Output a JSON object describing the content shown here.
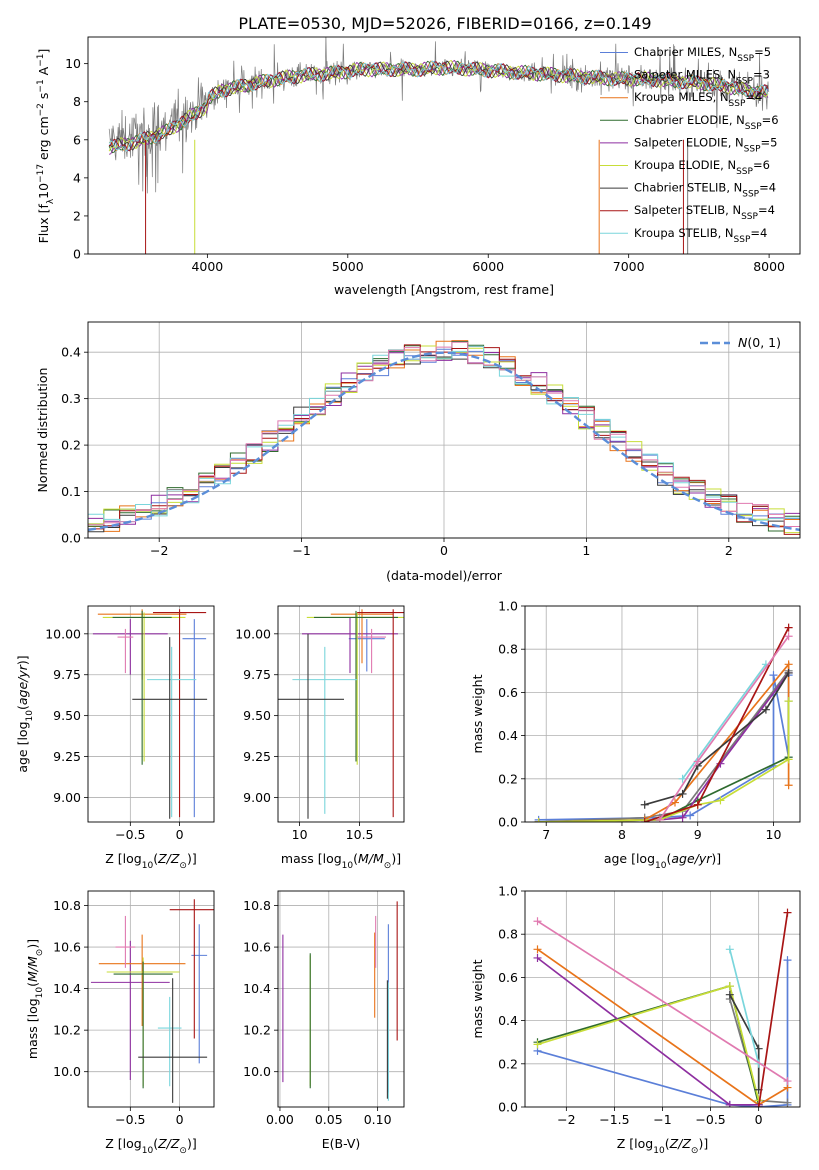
{
  "figure": {
    "title": "PLATE=0530, MJD=52026, FIBERID=0166, z=0.149"
  },
  "colors": {
    "Chabrier MILES": "#5b7fd8",
    "Salpeter MILES": "#7a7a7a",
    "Kroupa MILES": "#e8741a",
    "Chabrier ELODIE": "#2f6b2f",
    "Salpeter ELODIE": "#8e2fa0",
    "Kroupa ELODIE": "#c7dd38",
    "Chabrier STELIB": "#3a3a3a",
    "Salpeter STELIB": "#a81515",
    "Kroupa STELIB": "#7ad6dc",
    "pink": "#e07ab0",
    "gaussian": "#5b8ed8"
  },
  "chart_data": [
    {
      "id": "spectrum",
      "type": "line",
      "xlabel": "wavelength [Angstrom, rest frame]",
      "ylabel": "Flux [f_λ 10^-17 erg cm^-2 s^-1 A^-1]",
      "xlim": [
        3150,
        8220
      ],
      "ylim": [
        0,
        11.4
      ],
      "xticks": [
        4000,
        5000,
        6000,
        7000,
        8000
      ],
      "yticks": [
        0,
        2,
        4,
        6,
        8,
        10
      ],
      "grid": false,
      "legend_position": "top-right",
      "legend": [
        {
          "label": "Chabrier MILES, N_SSP=5",
          "color": "#5b7fd8"
        },
        {
          "label": "Salpeter MILES, N_SSP=3",
          "color": "#7a7a7a"
        },
        {
          "label": "Kroupa MILES, N_SSP=4",
          "color": "#e8741a"
        },
        {
          "label": "Chabrier ELODIE, N_SSP=6",
          "color": "#2f6b2f"
        },
        {
          "label": "Salpeter ELODIE, N_SSP=5",
          "color": "#8e2fa0"
        },
        {
          "label": "Kroupa ELODIE, N_SSP=6",
          "color": "#c7dd38"
        },
        {
          "label": "Chabrier STELIB, N_SSP=4",
          "color": "#3a3a3a"
        },
        {
          "label": "Salpeter STELIB, N_SSP=4",
          "color": "#a81515"
        },
        {
          "label": "Kroupa STELIB, N_SSP=4",
          "color": "#7ad6dc"
        }
      ],
      "continuum": {
        "x": [
          3300,
          3500,
          3700,
          3900,
          4100,
          4300,
          4500,
          4700,
          4900,
          5100,
          5300,
          5500,
          5700,
          5900,
          6100,
          6300,
          6500,
          6700,
          6900,
          7100,
          7300,
          7500,
          7700,
          7900
        ],
        "y": [
          5.9,
          6.2,
          6.7,
          7.6,
          8.6,
          8.9,
          9.2,
          9.4,
          9.5,
          9.7,
          9.7,
          9.7,
          9.8,
          9.7,
          9.6,
          9.5,
          9.4,
          9.3,
          9.2,
          9.2,
          9.1,
          9.0,
          8.8,
          8.5
        ]
      }
    },
    {
      "id": "residuals",
      "type": "histogram",
      "xlabel": "(data-model)/error",
      "ylabel": "Normed distribution",
      "xlim": [
        -2.5,
        2.5
      ],
      "ylim": [
        0,
        0.465
      ],
      "xticks": [
        -2,
        -1,
        0,
        1,
        2
      ],
      "yticks": [
        0.0,
        0.1,
        0.2,
        0.3,
        0.4
      ],
      "grid": true,
      "legend_position": "top-right",
      "legend": [
        {
          "label": "N(0,1)",
          "color": "#5b8ed8"
        }
      ],
      "bins": 45
    },
    {
      "id": "age-vs-Z",
      "type": "errorbar",
      "xlabel": "Z [log10(Z/Z_sun)]",
      "ylabel": "age  [log10(age/yr)]",
      "xlim": [
        -0.93,
        0.35
      ],
      "ylim": [
        8.85,
        10.17
      ],
      "xticks": [
        -0.5,
        0.0
      ],
      "yticks": [
        9.0,
        9.25,
        9.5,
        9.75,
        10.0
      ],
      "grid": true,
      "points": [
        {
          "series": "Chabrier MILES",
          "x": 0.15,
          "xerr": 0.12,
          "y": 9.97,
          "yerr_lo": 1.09,
          "yerr_hi": 0.12
        },
        {
          "series": "Salpeter ELODIE",
          "x": -0.5,
          "xerr": 0.38,
          "y": 10.0,
          "yerr_lo": 0.25,
          "yerr_hi": 0.09
        },
        {
          "series": "Kroupa MILES",
          "x": -0.38,
          "xerr": 0.45,
          "y": 10.12,
          "yerr_lo": 0.4,
          "yerr_hi": 0.03
        },
        {
          "series": "Kroupa ELODIE",
          "x": -0.36,
          "xerr": 0.42,
          "y": 10.1,
          "yerr_lo": 0.88,
          "yerr_hi": 0.03
        },
        {
          "series": "Chabrier ELODIE",
          "x": -0.38,
          "xerr": 0.3,
          "y": 10.1,
          "yerr_lo": 0.9,
          "yerr_hi": 0.04
        },
        {
          "series": "Salpeter STELIB",
          "x": 0.0,
          "xerr": 0.27,
          "y": 10.13,
          "yerr_lo": 1.25,
          "yerr_hi": 0.02
        },
        {
          "series": "Kroupa STELIB",
          "x": -0.08,
          "xerr": 0.25,
          "y": 9.72,
          "yerr_lo": 0.84,
          "yerr_hi": 0.2
        },
        {
          "series": "Chabrier STELIB",
          "x": -0.1,
          "xerr": 0.38,
          "y": 9.6,
          "yerr_lo": 0.73,
          "yerr_hi": 0.38
        },
        {
          "series": "pink",
          "x": -0.55,
          "xerr": 0.08,
          "y": 9.98,
          "yerr_lo": 0.22,
          "yerr_hi": 0.05
        }
      ]
    },
    {
      "id": "age-vs-mass",
      "type": "errorbar",
      "xlabel": "mass [log10(M/M_sun)]",
      "ylabel": "",
      "xlim": [
        9.82,
        10.87
      ],
      "ylim": [
        8.85,
        10.17
      ],
      "xticks": [
        10.0,
        10.5
      ],
      "yticks": [
        9.0,
        9.25,
        9.5,
        9.75,
        10.0
      ],
      "grid": true,
      "points": [
        {
          "series": "Chabrier MILES",
          "x": 10.56,
          "xerr": 0.15,
          "y": 9.97,
          "yerr_lo": 0.2,
          "yerr_hi": 0.12
        },
        {
          "series": "Salpeter ELODIE",
          "x": 10.42,
          "xerr": 0.4,
          "y": 10.0,
          "yerr_lo": 0.24,
          "yerr_hi": 0.1
        },
        {
          "series": "Kroupa MILES",
          "x": 10.52,
          "xerr": 0.26,
          "y": 10.12,
          "yerr_lo": 0.3,
          "yerr_hi": 0.03
        },
        {
          "series": "Kroupa ELODIE",
          "x": 10.48,
          "xerr": 0.42,
          "y": 10.1,
          "yerr_lo": 0.9,
          "yerr_hi": 0.03
        },
        {
          "series": "Chabrier ELODIE",
          "x": 10.47,
          "xerr": 0.35,
          "y": 10.1,
          "yerr_lo": 0.88,
          "yerr_hi": 0.04
        },
        {
          "series": "Salpeter STELIB",
          "x": 10.78,
          "xerr": 0.3,
          "y": 10.13,
          "yerr_lo": 1.25,
          "yerr_hi": 0.02
        },
        {
          "series": "Kroupa STELIB",
          "x": 10.21,
          "xerr": 0.27,
          "y": 9.72,
          "yerr_lo": 0.82,
          "yerr_hi": 0.2
        },
        {
          "series": "Chabrier STELIB",
          "x": 10.07,
          "xerr": 0.3,
          "y": 9.6,
          "yerr_lo": 0.73,
          "yerr_hi": 0.4
        },
        {
          "series": "pink",
          "x": 10.6,
          "xerr": 0.12,
          "y": 9.98,
          "yerr_lo": 0.22,
          "yerr_hi": 0.05
        }
      ]
    },
    {
      "id": "mass-weight-vs-age",
      "type": "line",
      "xlabel": "age  [log10(age/yr)]",
      "ylabel": "mass weight",
      "xlim": [
        6.72,
        10.35
      ],
      "ylim": [
        0,
        1.0
      ],
      "xticks": [
        7,
        8,
        9,
        10
      ],
      "yticks": [
        0.0,
        0.2,
        0.4,
        0.6,
        0.8,
        1.0
      ],
      "grid": true,
      "series": [
        {
          "name": "Chabrier MILES",
          "x": [
            6.9,
            8.5,
            8.9,
            10.0,
            10.0,
            10.2,
            10.2
          ],
          "y": [
            0.01,
            0.02,
            0.03,
            0.26,
            0.68,
            0.3,
            0.68
          ]
        },
        {
          "name": "Salpeter MILES",
          "x": [
            6.9,
            8.3,
            8.8,
            10.2
          ],
          "y": [
            0.0,
            0.02,
            0.05,
            0.7
          ]
        },
        {
          "name": "Kroupa MILES",
          "x": [
            6.9,
            8.3,
            8.7,
            10.2,
            10.2
          ],
          "y": [
            0.0,
            0.01,
            0.09,
            0.73,
            0.17
          ]
        },
        {
          "name": "Chabrier ELODIE",
          "x": [
            6.9,
            8.5,
            9.0,
            10.2,
            10.2
          ],
          "y": [
            0.0,
            0.01,
            0.1,
            0.3,
            0.56
          ]
        },
        {
          "name": "Salpeter ELODIE",
          "x": [
            6.9,
            8.5,
            8.8,
            9.3,
            10.2
          ],
          "y": [
            0.0,
            0.01,
            0.02,
            0.27,
            0.69
          ]
        },
        {
          "name": "Kroupa ELODIE",
          "x": [
            6.9,
            8.5,
            9.0,
            9.3,
            10.2,
            10.2
          ],
          "y": [
            0.0,
            0.01,
            0.08,
            0.1,
            0.29,
            0.56
          ]
        },
        {
          "name": "Chabrier STELIB",
          "x": [
            8.3,
            8.8,
            9.0,
            9.9,
            10.2
          ],
          "y": [
            0.08,
            0.13,
            0.26,
            0.52,
            0.69
          ]
        },
        {
          "name": "Salpeter STELIB",
          "x": [
            8.3,
            9.0,
            10.2
          ],
          "y": [
            0.0,
            0.08,
            0.9
          ]
        },
        {
          "name": "Kroupa STELIB",
          "x": [
            8.8,
            9.9
          ],
          "y": [
            0.2,
            0.73
          ]
        },
        {
          "name": "pink",
          "x": [
            8.5,
            9.0,
            10.2
          ],
          "y": [
            0.01,
            0.28,
            0.86
          ]
        }
      ]
    },
    {
      "id": "mass-vs-Z",
      "type": "errorbar",
      "xlabel": "Z [log10(Z/Z_sun)]",
      "ylabel": "mass [log10(M/M_sun)]",
      "xlim": [
        -0.93,
        0.35
      ],
      "ylim": [
        9.83,
        10.87
      ],
      "xticks": [
        -0.5,
        0.0
      ],
      "yticks": [
        10.0,
        10.2,
        10.4,
        10.6,
        10.8
      ],
      "grid": true,
      "points": [
        {
          "series": "Chabrier MILES",
          "x": 0.2,
          "xerr": 0.08,
          "y": 10.56,
          "yerr_lo": 0.52,
          "yerr_hi": 0.15
        },
        {
          "series": "Salpeter ELODIE",
          "x": -0.5,
          "xerr": 0.4,
          "y": 10.43,
          "yerr_lo": 0.47,
          "yerr_hi": 0.2
        },
        {
          "series": "Kroupa MILES",
          "x": -0.38,
          "xerr": 0.44,
          "y": 10.52,
          "yerr_lo": 0.3,
          "yerr_hi": 0.14
        },
        {
          "series": "Kroupa ELODIE",
          "x": -0.37,
          "xerr": 0.37,
          "y": 10.48,
          "yerr_lo": 0.55,
          "yerr_hi": 0.07
        },
        {
          "series": "Chabrier ELODIE",
          "x": -0.37,
          "xerr": 0.3,
          "y": 10.47,
          "yerr_lo": 0.55,
          "yerr_hi": 0.06
        },
        {
          "series": "Salpeter STELIB",
          "x": 0.15,
          "xerr": 0.25,
          "y": 10.78,
          "yerr_lo": 0.62,
          "yerr_hi": 0.05
        },
        {
          "series": "Kroupa STELIB",
          "x": -0.1,
          "xerr": 0.12,
          "y": 10.21,
          "yerr_lo": 0.28,
          "yerr_hi": 0.15
        },
        {
          "series": "Chabrier STELIB",
          "x": -0.07,
          "xerr": 0.35,
          "y": 10.07,
          "yerr_lo": 0.22,
          "yerr_hi": 0.38
        },
        {
          "series": "pink",
          "x": -0.55,
          "xerr": 0.1,
          "y": 10.6,
          "yerr_lo": 0.1,
          "yerr_hi": 0.15
        }
      ]
    },
    {
      "id": "mass-vs-EBV",
      "type": "errorbar",
      "xlabel": "E(B-V)",
      "ylabel": "",
      "xlim": [
        -0.002,
        0.127
      ],
      "ylim": [
        9.83,
        10.87
      ],
      "xticks": [
        0.0,
        0.05,
        0.1
      ],
      "xtick_labels": [
        "0.00",
        "0.05",
        "0.10"
      ],
      "yticks": [
        10.0,
        10.2,
        10.4,
        10.6,
        10.8
      ],
      "grid": true,
      "points": [
        {
          "series": "Chabrier MILES",
          "x": 0.111,
          "y": 10.56,
          "yerr_lo": 0.66,
          "yerr_hi": 0.15
        },
        {
          "series": "Salpeter ELODIE",
          "x": 0.003,
          "y": 10.43,
          "yerr_lo": 0.48,
          "yerr_hi": 0.23
        },
        {
          "series": "Kroupa MILES",
          "x": 0.097,
          "y": 10.52,
          "yerr_lo": 0.26,
          "yerr_hi": 0.15
        },
        {
          "series": "Kroupa ELODIE",
          "x": 0.031,
          "y": 10.48,
          "yerr_lo": 0.55,
          "yerr_hi": 0.08
        },
        {
          "series": "Chabrier ELODIE",
          "x": 0.031,
          "y": 10.47,
          "yerr_lo": 0.55,
          "yerr_hi": 0.1
        },
        {
          "series": "Salpeter STELIB",
          "x": 0.12,
          "y": 10.78,
          "yerr_lo": 0.63,
          "yerr_hi": 0.04
        },
        {
          "series": "Kroupa STELIB",
          "x": 0.111,
          "y": 10.21,
          "yerr_lo": 0.35,
          "yerr_hi": 0.22
        },
        {
          "series": "Chabrier STELIB",
          "x": 0.11,
          "y": 10.07,
          "yerr_lo": 0.2,
          "yerr_hi": 0.37
        },
        {
          "series": "pink",
          "x": 0.098,
          "y": 10.6,
          "yerr_lo": 0.1,
          "yerr_hi": 0.15
        }
      ]
    },
    {
      "id": "mass-weight-vs-Z",
      "type": "line",
      "xlabel": "Z [log10(Z/Z_sun)]",
      "ylabel": "mass weight",
      "xlim": [
        -2.43,
        0.43
      ],
      "ylim": [
        0,
        1.0
      ],
      "xticks": [
        -2.0,
        -1.5,
        -1.0,
        -0.5,
        0.0
      ],
      "yticks": [
        0.0,
        0.2,
        0.4,
        0.6,
        0.8,
        1.0
      ],
      "grid": true,
      "series": [
        {
          "name": "Chabrier MILES",
          "x": [
            -2.3,
            -0.3,
            0.0,
            0.3,
            0.3
          ],
          "y": [
            0.26,
            0.01,
            0.0,
            0.01,
            0.68
          ]
        },
        {
          "name": "Salpeter MILES",
          "x": [
            -0.3,
            0.0,
            0.3
          ],
          "y": [
            0.5,
            0.03,
            0.02
          ]
        },
        {
          "name": "Kroupa MILES",
          "x": [
            -2.3,
            0.0,
            0.3
          ],
          "y": [
            0.73,
            0.01,
            0.09
          ]
        },
        {
          "name": "Chabrier ELODIE",
          "x": [
            -2.3,
            -0.3,
            0.0
          ],
          "y": [
            0.3,
            0.56,
            0.01
          ]
        },
        {
          "name": "Salpeter ELODIE",
          "x": [
            -2.3,
            -0.3,
            0.0
          ],
          "y": [
            0.69,
            0.01,
            0.01
          ]
        },
        {
          "name": "Kroupa ELODIE",
          "x": [
            -2.3,
            -0.3,
            0.0
          ],
          "y": [
            0.29,
            0.56,
            0.03
          ]
        },
        {
          "name": "Chabrier STELIB",
          "x": [
            -0.3,
            0.0,
            0.0
          ],
          "y": [
            0.52,
            0.27,
            0.08
          ]
        },
        {
          "name": "Salpeter STELIB",
          "x": [
            0.0,
            0.3
          ],
          "y": [
            0.0,
            0.9
          ]
        },
        {
          "name": "Kroupa STELIB",
          "x": [
            -0.3,
            0.0
          ],
          "y": [
            0.73,
            0.2
          ]
        },
        {
          "name": "pink",
          "x": [
            -2.3,
            0.3
          ],
          "y": [
            0.86,
            0.12
          ]
        }
      ]
    }
  ]
}
